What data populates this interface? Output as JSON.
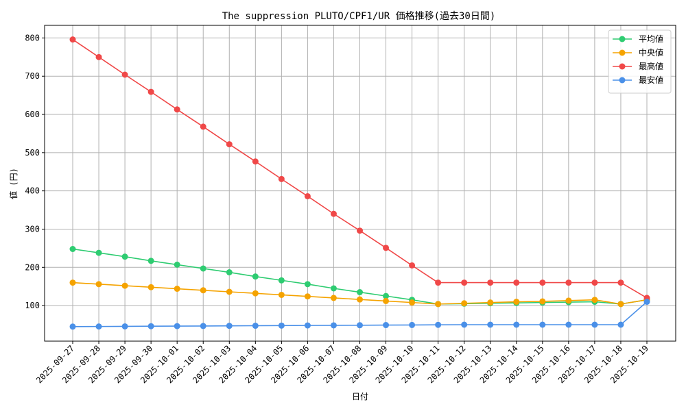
{
  "chart_data": {
    "type": "line",
    "title": "The suppression PLUTO/CPF1/UR 価格推移(過去30日間)",
    "xlabel": "日付",
    "ylabel": "値 (円)",
    "categories": [
      "2025-09-27",
      "2025-09-28",
      "2025-09-29",
      "2025-09-30",
      "2025-10-01",
      "2025-10-02",
      "2025-10-03",
      "2025-10-04",
      "2025-10-05",
      "2025-10-06",
      "2025-10-07",
      "2025-10-08",
      "2025-10-09",
      "2025-10-10",
      "2025-10-11",
      "2025-10-12",
      "2025-10-13",
      "2025-10-14",
      "2025-10-15",
      "2025-10-16",
      "2025-10-17",
      "2025-10-18",
      "2025-10-19"
    ],
    "ylim": [
      7,
      833
    ],
    "yticks": [
      100,
      200,
      300,
      400,
      500,
      600,
      700,
      800
    ],
    "grid": true,
    "legend_position": "top-right",
    "series": [
      {
        "name": "平均値",
        "color": "#2ecc71",
        "values": [
          248,
          238,
          228,
          217,
          207,
          197,
          187,
          176,
          166,
          156,
          145,
          135,
          125,
          115,
          104,
          105,
          106,
          107,
          108,
          109,
          110,
          104,
          115
        ]
      },
      {
        "name": "中央値",
        "color": "#f5a300",
        "values": [
          160,
          156,
          152,
          148,
          144,
          140,
          136,
          132,
          128,
          124,
          120,
          116,
          112,
          108,
          104,
          106,
          108,
          110,
          111,
          113,
          115,
          104,
          115
        ]
      },
      {
        "name": "最高値",
        "color": "#f04848",
        "values": [
          796,
          750,
          704,
          659,
          613,
          568,
          522,
          477,
          431,
          386,
          340,
          296,
          251,
          205,
          160,
          160,
          160,
          160,
          160,
          160,
          160,
          160,
          120
        ]
      },
      {
        "name": "最安値",
        "color": "#4a90e8",
        "values": [
          45,
          45.3,
          45.6,
          46,
          46.3,
          46.6,
          47,
          47.3,
          47.6,
          48,
          48.3,
          48.6,
          49,
          49.3,
          49.6,
          50,
          50,
          50,
          50,
          50,
          50,
          50,
          110
        ]
      }
    ]
  }
}
